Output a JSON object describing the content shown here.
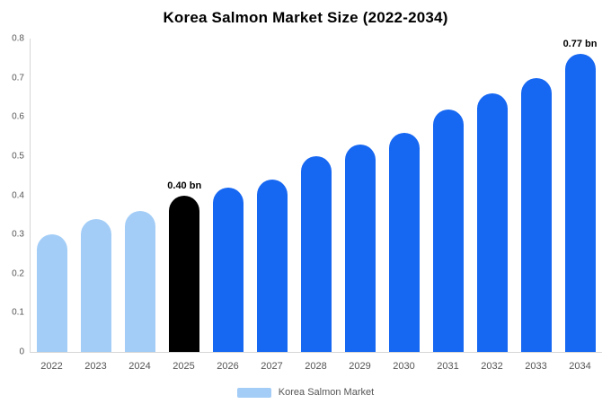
{
  "chart_data": {
    "type": "bar",
    "title": "Korea Salmon Market Size (2022-2034)",
    "categories": [
      "2022",
      "2023",
      "2024",
      "2025",
      "2026",
      "2027",
      "2028",
      "2029",
      "2030",
      "2031",
      "2032",
      "2033",
      "2034"
    ],
    "values": [
      0.3,
      0.34,
      0.36,
      0.4,
      0.42,
      0.44,
      0.5,
      0.53,
      0.56,
      0.62,
      0.66,
      0.7,
      0.77
    ],
    "bar_colors": [
      "#a3cdf7",
      "#a3cdf7",
      "#a3cdf7",
      "#000000",
      "#1667f2",
      "#1667f2",
      "#1667f2",
      "#1667f2",
      "#1667f2",
      "#1667f2",
      "#1667f2",
      "#1667f2",
      "#1667f2"
    ],
    "ylim": [
      0,
      0.8
    ],
    "ytick_labels": [
      "0",
      "0.1",
      "0.2",
      "0.3",
      "0.4",
      "0.5",
      "0.6",
      "0.7",
      "0.8"
    ],
    "annotations": [
      {
        "category": "2025",
        "text": "0.40 bn"
      },
      {
        "category": "2034",
        "text": "0.77 bn"
      }
    ],
    "legend": [
      {
        "label": "Korea Salmon Market",
        "color": "#a3cdf7"
      }
    ],
    "grid": false,
    "legend_position": "bottom"
  },
  "colors": {
    "light_blue": "#a3cdf7",
    "blue": "#1667f2",
    "black": "#000000",
    "axis": "#d6d6d6",
    "tick_text": "#555555"
  }
}
